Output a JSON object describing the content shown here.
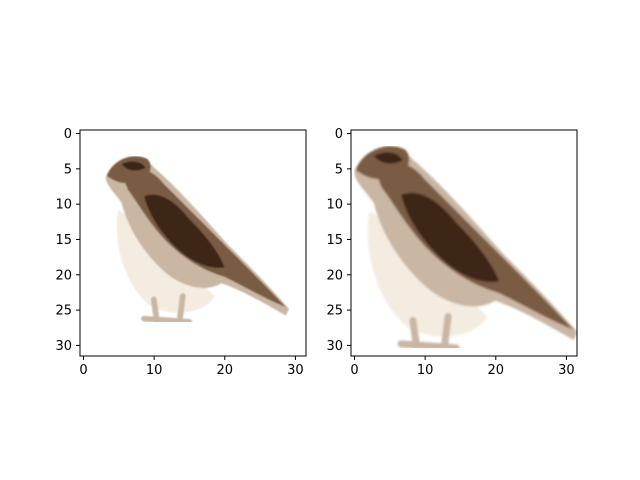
{
  "chart_data": [
    {
      "type": "heatmap",
      "title": "",
      "xlabel": "",
      "ylabel": "",
      "xlim": [
        -0.5,
        31.5
      ],
      "ylim": [
        31.5,
        -0.5
      ],
      "x_ticks": [
        0,
        10,
        20,
        30
      ],
      "y_ticks": [
        0,
        5,
        10,
        15,
        20,
        25,
        30
      ],
      "grid": false,
      "content": "32x32 pixel image of a brown-and-white bird perched, facing left, tail extending to the lower right"
    },
    {
      "type": "heatmap",
      "title": "",
      "xlabel": "",
      "ylabel": "",
      "xlim": [
        -0.5,
        31.5
      ],
      "ylim": [
        31.5,
        -0.5
      ],
      "x_ticks": [
        0,
        10,
        20,
        30
      ],
      "y_ticks": [
        0,
        5,
        10,
        15,
        20,
        25,
        30
      ],
      "grid": false,
      "content": "zoomed-in 32x32 pixel image of the same bird, larger and cropped at the edges"
    }
  ],
  "colors": {
    "background": "#ffffff",
    "bird_dark": "#3e2614",
    "bird_mid": "#7a5c44",
    "bird_light": "#c9b6a3",
    "bird_cream": "#f4ece0",
    "axis": "#000000"
  }
}
